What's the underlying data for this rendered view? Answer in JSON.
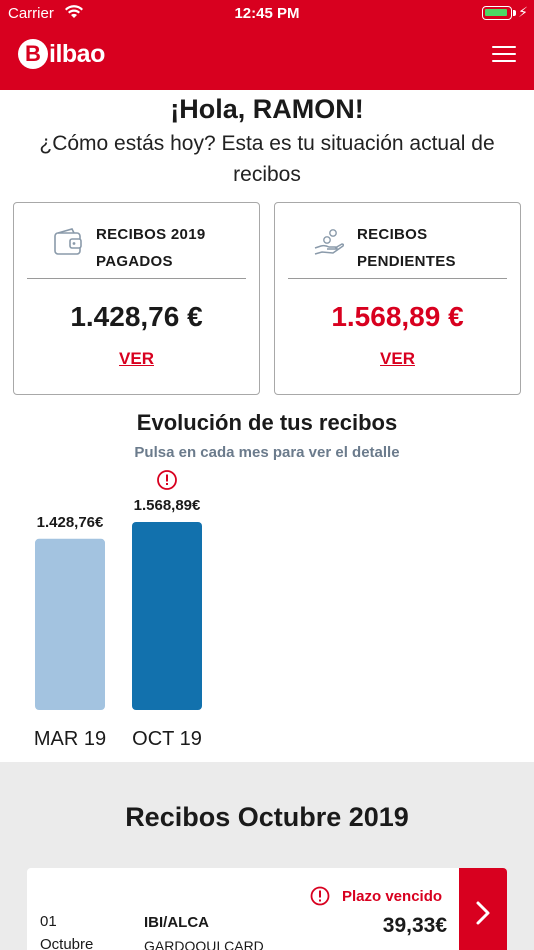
{
  "status_bar": {
    "carrier": "Carrier",
    "time": "12:45 PM"
  },
  "header": {
    "logo_letter": "B",
    "logo_text": "ilbao"
  },
  "greeting": {
    "title": "¡Hola, RAMON!",
    "subtitle": "¿Cómo estás hoy? Esta es tu situación actual de recibos"
  },
  "cards": {
    "paid": {
      "line1": "RECIBOS 2019",
      "line2": "PAGADOS",
      "amount": "1.428,76 €",
      "link": "VER",
      "icon": "wallet-icon"
    },
    "pending": {
      "line1": "RECIBOS",
      "line2": "PENDIENTES",
      "amount": "1.568,89 €",
      "link": "VER",
      "icon": "hand-coins-icon"
    }
  },
  "evolution": {
    "title": "Evolución de tus recibos",
    "subtitle": "Pulsa en cada mes para ver el detalle"
  },
  "chart_data": {
    "type": "bar",
    "categories": [
      "MAR 19",
      "OCT 19"
    ],
    "values": [
      1428.76,
      1568.89
    ],
    "value_labels": [
      "1.428,76€",
      "1.568,89€"
    ],
    "alerts": [
      false,
      true
    ],
    "colors": [
      "#a3c3e0",
      "#1271ad"
    ],
    "ylim": [
      0,
      1568.89
    ],
    "grid": false
  },
  "receipts": {
    "title": "Recibos Octubre 2019",
    "items": [
      {
        "status": "Plazo vencido",
        "day": "01",
        "month": "Octubre",
        "concept": "IBI/ALCA",
        "detail": "GARDOQUI CARD",
        "amount": "39,33€"
      }
    ]
  },
  "colors": {
    "brand_red": "#d8001f",
    "bar_light": "#a3c3e0",
    "bar_dark": "#1271ad",
    "subtitle_gray": "#6b7b8c"
  }
}
